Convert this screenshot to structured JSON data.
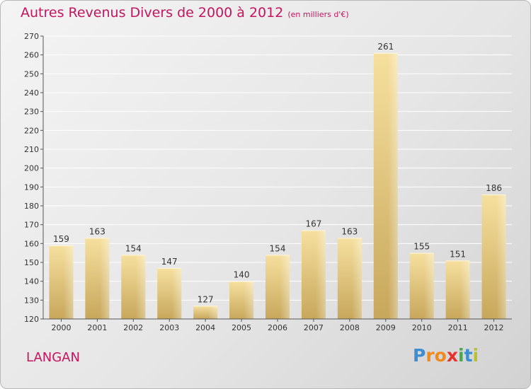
{
  "header": {
    "title": "Autres Revenus Divers de 2000 à 2012",
    "subtitle": "(en milliers d'€)"
  },
  "footer": {
    "commune": "LANGAN",
    "logo_text": "Proxiti"
  },
  "colors": {
    "title": "#c4155e",
    "bar_light": "#f5dfa0",
    "bar_dark": "#c9a85c",
    "axis": "#555555"
  },
  "chart_data": {
    "type": "bar",
    "title": "Autres Revenus Divers de 2000 à 2012",
    "subtitle": "(en milliers d'€)",
    "xlabel": "",
    "ylabel": "",
    "categories": [
      "2000",
      "2001",
      "2002",
      "2003",
      "2004",
      "2005",
      "2006",
      "2007",
      "2008",
      "2009",
      "2010",
      "2011",
      "2012"
    ],
    "values": [
      159,
      163,
      154,
      147,
      127,
      140,
      154,
      167,
      163,
      261,
      155,
      151,
      186
    ],
    "ylim": [
      120,
      270
    ],
    "yticks": [
      120,
      130,
      140,
      150,
      160,
      170,
      180,
      190,
      200,
      210,
      220,
      230,
      240,
      250,
      260,
      270
    ],
    "grid": true,
    "data_labels": true
  }
}
